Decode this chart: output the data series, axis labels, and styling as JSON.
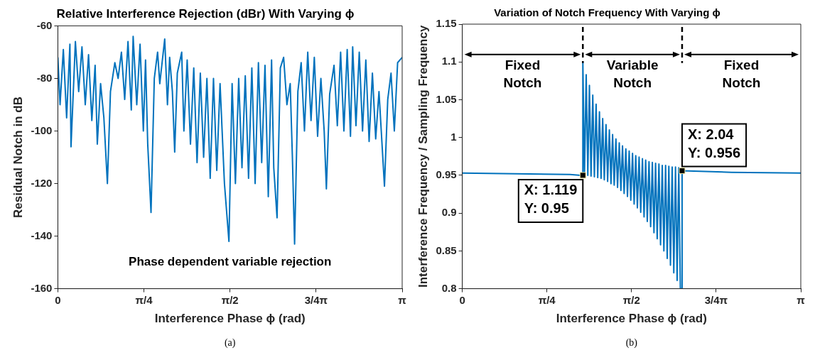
{
  "chart_data": [
    {
      "type": "line",
      "title": "Relative Interference Rejection (dBr) With Varying ϕ",
      "xlabel": "Interference Phase ϕ (rad)",
      "ylabel": "Residual Notch in dB",
      "x": [
        0,
        0.02,
        0.05,
        0.08,
        0.11,
        0.12,
        0.16,
        0.19,
        0.22,
        0.25,
        0.28,
        0.31,
        0.34,
        0.36,
        0.39,
        0.42,
        0.452,
        0.48,
        0.52,
        0.55,
        0.58,
        0.61,
        0.64,
        0.67,
        0.687,
        0.72,
        0.75,
        0.78,
        0.8,
        0.82,
        0.85,
        0.88,
        0.91,
        0.93,
        0.975,
        1.0,
        1.02,
        1.045,
        1.066,
        1.09,
        1.13,
        1.15,
        1.18,
        1.21,
        1.24,
        1.27,
        1.3,
        1.33,
        1.36,
        1.39,
        1.42,
        1.45,
        1.48,
        1.52,
        1.561,
        1.59,
        1.62,
        1.65,
        1.68,
        1.71,
        1.74,
        1.77,
        1.8,
        1.83,
        1.86,
        1.89,
        1.92,
        1.95,
        1.97,
        2.0,
        2.03,
        2.06,
        2.09,
        2.12,
        2.14,
        2.16,
        2.19,
        2.22,
        2.25,
        2.28,
        2.31,
        2.34,
        2.37,
        2.4,
        2.43,
        2.45,
        2.48,
        2.52,
        2.55,
        2.58,
        2.61,
        2.64,
        2.67,
        2.69,
        2.72,
        2.75,
        2.78,
        2.81,
        2.84,
        2.87,
        2.9,
        2.93,
        2.98,
        3.01,
        3.04,
        3.07,
        3.1,
        3.1416
      ],
      "series": [
        {
          "color": "#0072bd",
          "values": [
            -72,
            -90,
            -69,
            -95,
            -67,
            -106,
            -66,
            -85,
            -68,
            -90,
            -71,
            -96,
            -75,
            -105,
            -82,
            -95,
            -120,
            -85,
            -74,
            -80,
            -70,
            -88,
            -66,
            -92,
            -64,
            -90,
            -67,
            -100,
            -73,
            -105,
            -131,
            -80,
            -70,
            -82,
            -65,
            -90,
            -72,
            -85,
            -108,
            -78,
            -70,
            -100,
            -73,
            -105,
            -76,
            -112,
            -78,
            -110,
            -80,
            -118,
            -80,
            -115,
            -82,
            -120,
            -142,
            -82,
            -120,
            -80,
            -114,
            -79,
            -118,
            -76,
            -120,
            -74,
            -112,
            -75,
            -125,
            -73,
            -114,
            -133,
            -76,
            -72,
            -90,
            -82,
            -110,
            -143,
            -85,
            -74,
            -100,
            -70,
            -96,
            -72,
            -102,
            -80,
            -100,
            -122,
            -86,
            -75,
            -98,
            -70,
            -100,
            -69,
            -102,
            -68,
            -98,
            -70,
            -100,
            -73,
            -104,
            -78,
            -103,
            -85,
            -121,
            -88,
            -78,
            -100,
            -74,
            -72
          ]
        }
      ],
      "xlim": [
        0,
        3.1416
      ],
      "xticks": [
        0,
        {
          "value": 0.7854,
          "label": "π/4"
        },
        {
          "value": 1.5708,
          "label": "π/2"
        },
        {
          "value": 2.3562,
          "label": "3/4π"
        },
        {
          "value": 3.1416,
          "label": "π"
        }
      ],
      "ylim": [
        -160,
        -60
      ],
      "yticks": [
        -160,
        -140,
        -120,
        -100,
        -80,
        -60
      ],
      "grid": false,
      "marker": "none",
      "annotations": [
        "Phase dependent variable rejection",
        "(a)"
      ]
    },
    {
      "type": "line",
      "title": "Variation of Notch Frequency With Varying ϕ",
      "xlabel": "Interference Phase ϕ (rad)",
      "ylabel": "Interference Frequency / Sampling Frequency",
      "x": [
        0,
        0.5,
        1.0,
        1.1,
        1.119,
        1.119,
        1.134,
        1.15,
        1.165,
        1.18,
        1.195,
        1.211,
        1.226,
        1.242,
        1.257,
        1.273,
        1.288,
        1.303,
        1.318,
        1.334,
        1.349,
        1.365,
        1.38,
        1.395,
        1.41,
        1.426,
        1.441,
        1.457,
        1.472,
        1.487,
        1.502,
        1.518,
        1.533,
        1.549,
        1.564,
        1.58,
        1.595,
        1.61,
        1.625,
        1.641,
        1.656,
        1.672,
        1.687,
        1.702,
        1.717,
        1.733,
        1.748,
        1.764,
        1.779,
        1.794,
        1.809,
        1.825,
        1.84,
        1.856,
        1.871,
        1.887,
        1.902,
        1.917,
        1.932,
        1.948,
        1.963,
        1.979,
        1.994,
        2.009,
        2.024,
        2.04,
        2.04,
        2.5,
        3.1416
      ],
      "series": [
        {
          "color": "#0072bd",
          "values": [
            0.953,
            0.952,
            0.951,
            0.95,
            0.95,
            1.1,
            0.95,
            1.083,
            0.95,
            1.069,
            0.949,
            1.056,
            0.948,
            1.044,
            0.947,
            1.034,
            0.946,
            1.025,
            0.944,
            1.017,
            0.942,
            1.01,
            0.939,
            1.004,
            0.937,
            0.998,
            0.934,
            0.993,
            0.93,
            0.989,
            0.926,
            0.985,
            0.922,
            0.982,
            0.917,
            0.979,
            0.912,
            0.976,
            0.907,
            0.974,
            0.901,
            0.972,
            0.895,
            0.97,
            0.889,
            0.968,
            0.882,
            0.967,
            0.874,
            0.966,
            0.866,
            0.965,
            0.858,
            0.963,
            0.85,
            0.963,
            0.84,
            0.962,
            0.831,
            0.961,
            0.821,
            0.961,
            0.811,
            0.96,
            0.8,
            0.8,
            0.956,
            0.954,
            0.953
          ]
        }
      ],
      "xlim": [
        0,
        3.1416
      ],
      "xticks": [
        0,
        {
          "value": 0.7854,
          "label": "π/4"
        },
        {
          "value": 1.5708,
          "label": "π/2"
        },
        {
          "value": 2.3562,
          "label": "3/4π"
        },
        {
          "value": 3.1416,
          "label": "π"
        }
      ],
      "ylim": [
        0.8,
        1.15
      ],
      "yticks": [
        0.8,
        0.85,
        0.9,
        0.95,
        1,
        1.05,
        1.1,
        1.15
      ],
      "grid": false,
      "marker": "none",
      "ref_lines": [
        {
          "axis": "x",
          "value": 1.119,
          "color": "#000000",
          "line_style": "dashed"
        },
        {
          "axis": "x",
          "value": 2.04,
          "color": "#000000",
          "line_style": "dashed"
        }
      ],
      "annotations": [
        "Fixed\nNotch",
        "Variable\nNotch",
        "Fixed\nNotch",
        {
          "text": "X: 1.119\nY: 0.95",
          "x": 1.119,
          "y": 0.95
        },
        {
          "text": "X: 2.04\nY: 0.956",
          "x": 2.04,
          "y": 0.956
        },
        "(b)"
      ]
    }
  ]
}
